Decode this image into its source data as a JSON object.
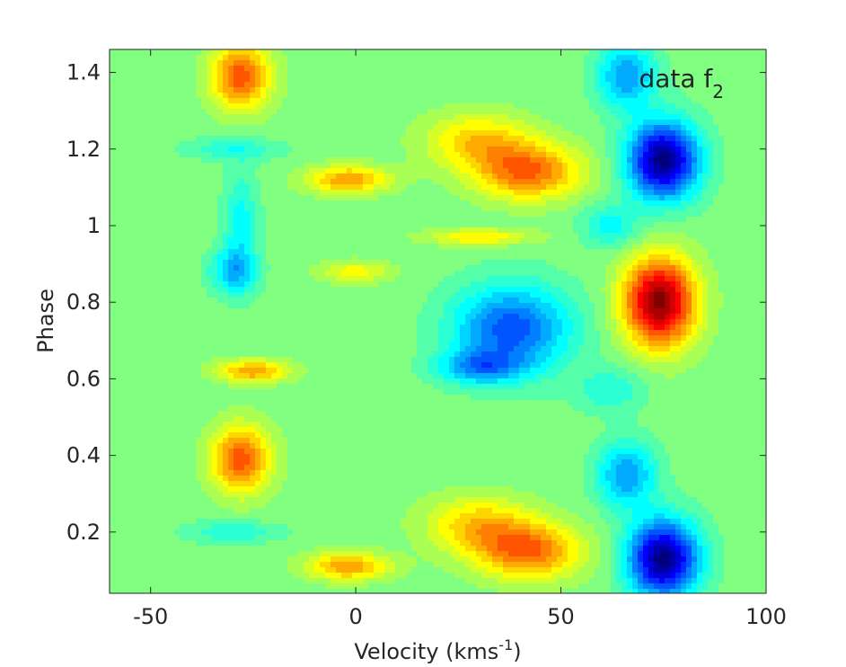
{
  "chart_data": {
    "type": "heatmap",
    "subtype": "filled-contour",
    "colormap": "jet",
    "title": "",
    "annotation": {
      "text": "data f",
      "subscript": "2",
      "placement": "top-right inside plot"
    },
    "xlabel": {
      "text": "Velocity (kms",
      "superscript": "-1",
      "suffix": ")"
    },
    "ylabel": "Phase",
    "xlim": [
      -60,
      100
    ],
    "ylim": [
      0.04,
      1.46
    ],
    "xticks": [
      -50,
      0,
      50,
      100
    ],
    "xtick_labels": [
      "-50",
      "0",
      "50",
      "100"
    ],
    "yticks": [
      0.2,
      0.4,
      0.6,
      0.8,
      1.0,
      1.2,
      1.4
    ],
    "ytick_labels": [
      "0.2",
      "0.4",
      "0.6",
      "0.8",
      "1",
      "1.2",
      "1.4"
    ],
    "grid": false,
    "background_level": 0.0,
    "value_range": [
      -1,
      1
    ],
    "features": [
      {
        "label": "strong-positive",
        "velocity": 74,
        "phase": 0.8,
        "value": 1.0,
        "sigma_v": 6,
        "sigma_p": 0.08
      },
      {
        "label": "strong-negative",
        "velocity": 75,
        "phase": 0.13,
        "value": -1.0,
        "sigma_v": 6,
        "sigma_p": 0.07
      },
      {
        "label": "strong-negative",
        "velocity": 75,
        "phase": 1.17,
        "value": -1.0,
        "sigma_v": 6,
        "sigma_p": 0.07
      },
      {
        "label": "negative",
        "velocity": 66,
        "phase": 0.35,
        "value": -0.45,
        "sigma_v": 5,
        "sigma_p": 0.06
      },
      {
        "label": "negative",
        "velocity": 66,
        "phase": 1.39,
        "value": -0.45,
        "sigma_v": 5,
        "sigma_p": 0.06
      },
      {
        "label": "negative",
        "velocity": 38,
        "phase": 0.73,
        "value": -0.6,
        "sigma_v": 10,
        "sigma_p": 0.08
      },
      {
        "label": "negative",
        "velocity": 30,
        "phase": 0.63,
        "value": -0.4,
        "sigma_v": 7,
        "sigma_p": 0.03
      },
      {
        "label": "negative",
        "velocity": -30,
        "phase": 0.88,
        "value": -0.35,
        "sigma_v": 4,
        "sigma_p": 0.04
      },
      {
        "label": "positive",
        "velocity": -28,
        "phase": 0.39,
        "value": 0.6,
        "sigma_v": 5,
        "sigma_p": 0.06
      },
      {
        "label": "positive",
        "velocity": -28,
        "phase": 1.39,
        "value": 0.6,
        "sigma_v": 5,
        "sigma_p": 0.06
      },
      {
        "label": "positive",
        "velocity": -25,
        "phase": 0.62,
        "value": 0.45,
        "sigma_v": 6,
        "sigma_p": 0.02
      },
      {
        "label": "positive",
        "velocity": -2,
        "phase": 0.11,
        "value": 0.45,
        "sigma_v": 7,
        "sigma_p": 0.025
      },
      {
        "label": "positive",
        "velocity": -2,
        "phase": 1.12,
        "value": 0.45,
        "sigma_v": 7,
        "sigma_p": 0.025
      },
      {
        "label": "positive",
        "velocity": 42,
        "phase": 0.15,
        "value": 0.55,
        "sigma_v": 9,
        "sigma_p": 0.05
      },
      {
        "label": "positive",
        "velocity": 42,
        "phase": 1.14,
        "value": 0.55,
        "sigma_v": 9,
        "sigma_p": 0.05
      },
      {
        "label": "positive",
        "velocity": 30,
        "phase": 0.22,
        "value": 0.35,
        "sigma_v": 9,
        "sigma_p": 0.05
      },
      {
        "label": "positive",
        "velocity": 30,
        "phase": 1.22,
        "value": 0.35,
        "sigma_v": 9,
        "sigma_p": 0.05
      },
      {
        "label": "positive",
        "velocity": 30,
        "phase": 0.97,
        "value": 0.3,
        "sigma_v": 9,
        "sigma_p": 0.015
      },
      {
        "label": "positive",
        "velocity": 0,
        "phase": 0.88,
        "value": 0.25,
        "sigma_v": 6,
        "sigma_p": 0.02
      },
      {
        "label": "negative",
        "velocity": -28,
        "phase": 1.0,
        "value": -0.25,
        "sigma_v": 3,
        "sigma_p": 0.1
      },
      {
        "label": "negative",
        "velocity": -30,
        "phase": 0.2,
        "value": -0.2,
        "sigma_v": 8,
        "sigma_p": 0.02
      },
      {
        "label": "negative",
        "velocity": -30,
        "phase": 1.2,
        "value": -0.2,
        "sigma_v": 8,
        "sigma_p": 0.02
      },
      {
        "label": "negative",
        "velocity": 62,
        "phase": 0.57,
        "value": -0.2,
        "sigma_v": 6,
        "sigma_p": 0.04
      },
      {
        "label": "negative",
        "velocity": 62,
        "phase": 1.0,
        "value": -0.25,
        "sigma_v": 5,
        "sigma_p": 0.04
      }
    ]
  }
}
